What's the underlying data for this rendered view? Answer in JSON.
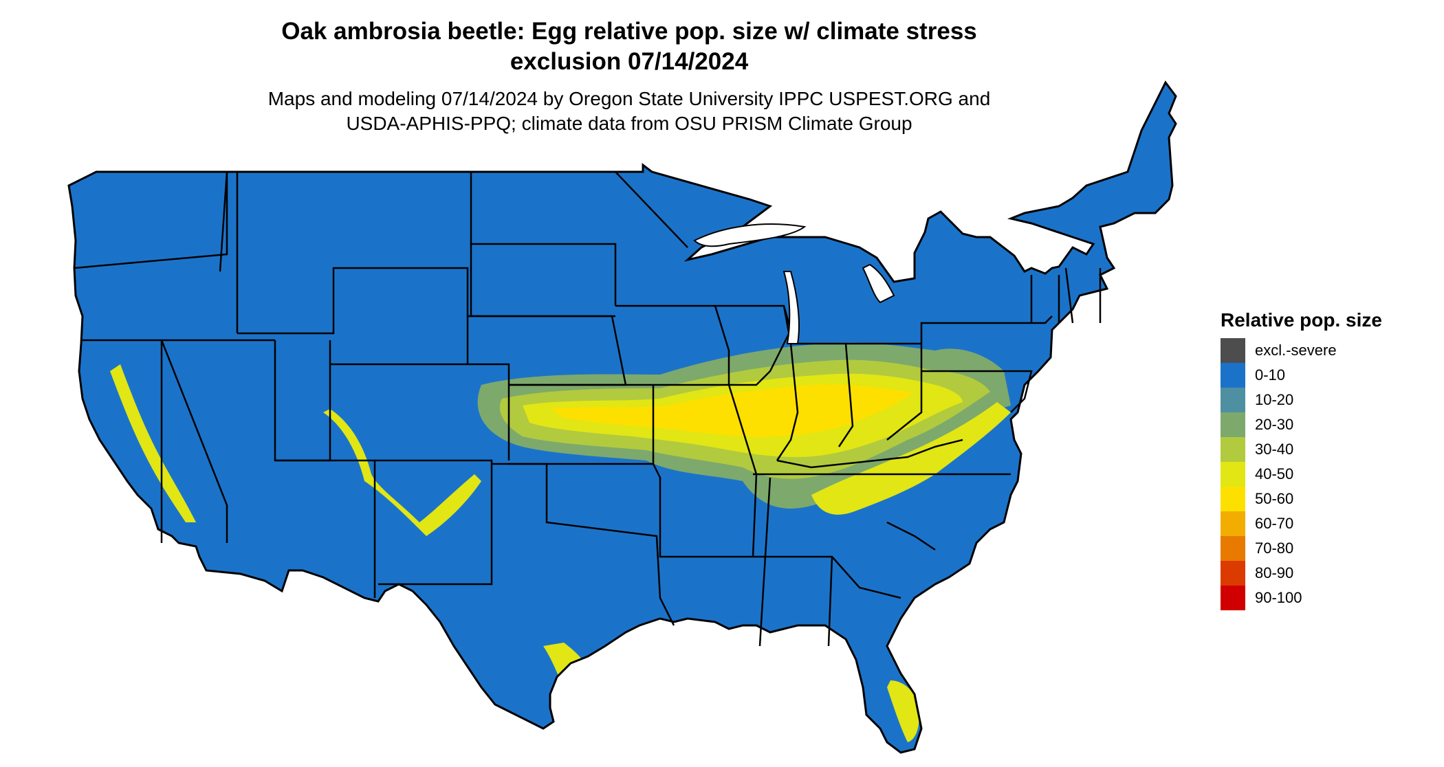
{
  "title_line1": "Oak ambrosia beetle: Egg relative pop. size w/ climate stress",
  "title_line2": "exclusion 07/14/2024",
  "subtitle_line1": "Maps and modeling 07/14/2024 by Oregon State University IPPC USPEST.ORG and",
  "subtitle_line2": "USDA-APHIS-PPQ; climate data from OSU PRISM Climate Group",
  "legend": {
    "title": "Relative pop. size",
    "items": [
      {
        "label": "excl.-severe",
        "color": "#4d4d4d"
      },
      {
        "label": "0-10",
        "color": "#1b73c9"
      },
      {
        "label": "10-20",
        "color": "#4e8fa1"
      },
      {
        "label": "20-30",
        "color": "#7ea96c"
      },
      {
        "label": "30-40",
        "color": "#b2ca3e"
      },
      {
        "label": "40-50",
        "color": "#e1e614"
      },
      {
        "label": "50-60",
        "color": "#fde000"
      },
      {
        "label": "60-70",
        "color": "#f3ad00"
      },
      {
        "label": "70-80",
        "color": "#e87a00"
      },
      {
        "label": "80-90",
        "color": "#dc3b00"
      },
      {
        "label": "90-100",
        "color": "#d10000"
      }
    ]
  },
  "map": {
    "region": "Conterminous United States",
    "base_color": "#1b73c9",
    "high_band_color": "#fde000",
    "mid_band_color": "#b2ca3e",
    "low_band_color": "#7ea96c"
  }
}
